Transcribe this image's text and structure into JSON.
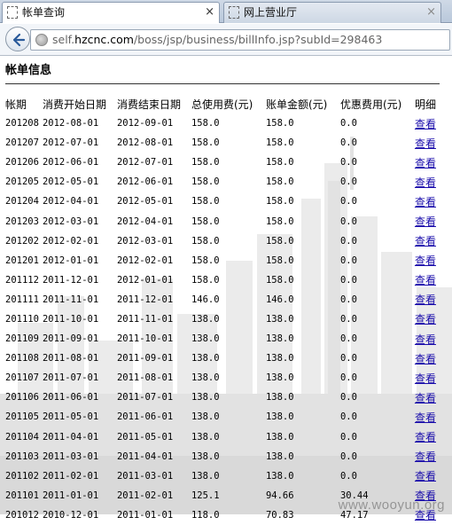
{
  "browser": {
    "tabs": [
      {
        "label": "帐单查询",
        "close": "×"
      },
      {
        "label": "网上营业厅",
        "close": "×"
      }
    ],
    "url": {
      "prefix": "self.",
      "host": "hzcnc.com",
      "path": "/boss/jsp/business/billInfo.jsp?subId=298463"
    }
  },
  "page": {
    "title": "帐单信息",
    "watermark": "www.wooyun.org"
  },
  "table": {
    "headers": [
      "帐期",
      "消费开始日期",
      "消费结束日期",
      "总使用费(元)",
      "账单金额(元)",
      "优惠费用(元)",
      "明细"
    ],
    "rows": [
      [
        "201208",
        "2012-08-01",
        "2012-09-01",
        "158.0",
        "158.0",
        "0.0",
        "查看"
      ],
      [
        "201207",
        "2012-07-01",
        "2012-08-01",
        "158.0",
        "158.0",
        "0.0",
        "查看"
      ],
      [
        "201206",
        "2012-06-01",
        "2012-07-01",
        "158.0",
        "158.0",
        "0.0",
        "查看"
      ],
      [
        "201205",
        "2012-05-01",
        "2012-06-01",
        "158.0",
        "158.0",
        "0.0",
        "查看"
      ],
      [
        "201204",
        "2012-04-01",
        "2012-05-01",
        "158.0",
        "158.0",
        "0.0",
        "查看"
      ],
      [
        "201203",
        "2012-03-01",
        "2012-04-01",
        "158.0",
        "158.0",
        "0.0",
        "查看"
      ],
      [
        "201202",
        "2012-02-01",
        "2012-03-01",
        "158.0",
        "158.0",
        "0.0",
        "查看"
      ],
      [
        "201201",
        "2012-01-01",
        "2012-02-01",
        "158.0",
        "158.0",
        "0.0",
        "查看"
      ],
      [
        "201112",
        "2011-12-01",
        "2012-01-01",
        "158.0",
        "158.0",
        "0.0",
        "查看"
      ],
      [
        "201111",
        "2011-11-01",
        "2011-12-01",
        "146.0",
        "146.0",
        "0.0",
        "查看"
      ],
      [
        "201110",
        "2011-10-01",
        "2011-11-01",
        "138.0",
        "138.0",
        "0.0",
        "查看"
      ],
      [
        "201109",
        "2011-09-01",
        "2011-10-01",
        "138.0",
        "138.0",
        "0.0",
        "查看"
      ],
      [
        "201108",
        "2011-08-01",
        "2011-09-01",
        "138.0",
        "138.0",
        "0.0",
        "查看"
      ],
      [
        "201107",
        "2011-07-01",
        "2011-08-01",
        "138.0",
        "138.0",
        "0.0",
        "查看"
      ],
      [
        "201106",
        "2011-06-01",
        "2011-07-01",
        "138.0",
        "138.0",
        "0.0",
        "查看"
      ],
      [
        "201105",
        "2011-05-01",
        "2011-06-01",
        "138.0",
        "138.0",
        "0.0",
        "查看"
      ],
      [
        "201104",
        "2011-04-01",
        "2011-05-01",
        "138.0",
        "138.0",
        "0.0",
        "查看"
      ],
      [
        "201103",
        "2011-03-01",
        "2011-04-01",
        "138.0",
        "138.0",
        "0.0",
        "查看"
      ],
      [
        "201102",
        "2011-02-01",
        "2011-03-01",
        "138.0",
        "138.0",
        "0.0",
        "查看"
      ],
      [
        "201101",
        "2011-01-01",
        "2011-02-01",
        "125.1",
        "94.66",
        "30.44",
        "查看"
      ],
      [
        "201012",
        "2010-12-01",
        "2011-01-01",
        "118.0",
        "70.83",
        "47.17",
        "查看"
      ]
    ]
  }
}
